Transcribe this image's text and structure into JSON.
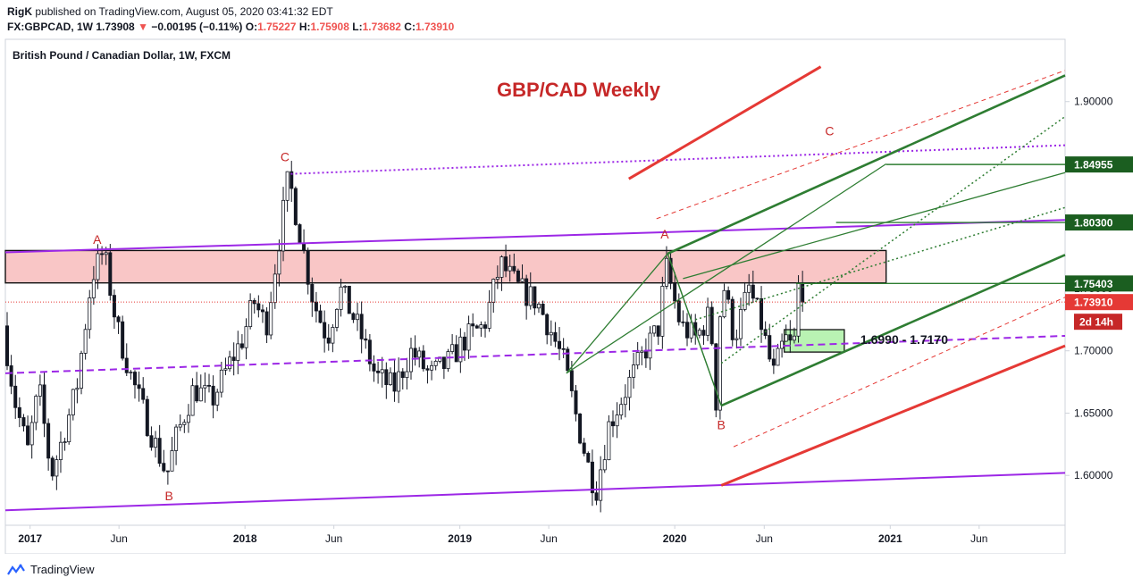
{
  "header": {
    "author": "RigK",
    "published_text": "published on TradingView.com, August 05, 2020 03:41:32 EDT",
    "symbol": "FX:GBPCAD, 1W",
    "last": "1.73908",
    "change_arrow": "▼",
    "change": "−0.00195 (−0.11%)",
    "o_label": "O:",
    "o_value": "1.75227",
    "h_label": "H:",
    "h_value": "1.75908",
    "l_label": "L:",
    "l_value": "1.73682",
    "c_label": "C:",
    "c_value": "1.73910"
  },
  "chart_title": "British Pound / Canadian Dollar, 1W, FXCM",
  "chart_annotation_title": "GBP/CAD Weekly",
  "footer": {
    "brand": "TradingView"
  },
  "colors": {
    "up": "#26a69a",
    "down": "#ef5350",
    "candle": "#131722",
    "resistance_zone": "#f7b3b3",
    "support_zone": "#a8f0a0",
    "purple": "#9c27e6",
    "green": "#2e7d32",
    "red": "#e53935"
  },
  "chart_data": {
    "type": "candlestick",
    "title": "British Pound / Canadian Dollar, 1W, FXCM",
    "annotation": "GBP/CAD Weekly",
    "x_range": [
      "2016-11-20",
      "2021-10-25"
    ],
    "ylim": [
      1.56,
      1.95
    ],
    "y_ticks": [
      1.6,
      1.65,
      1.7,
      1.75,
      1.8,
      1.85,
      1.9
    ],
    "y_tick_labels": [
      "1.60000",
      "1.65000",
      "1.70000",
      "1.75000",
      "1.80000",
      "1.85000",
      "1.90000"
    ],
    "x_ticks": [
      {
        "date": "2017-01-01",
        "label": "2017",
        "bold": true
      },
      {
        "date": "2017-06-01",
        "label": "Jun",
        "bold": false
      },
      {
        "date": "2018-01-01",
        "label": "2018",
        "bold": true
      },
      {
        "date": "2018-06-01",
        "label": "Jun",
        "bold": false
      },
      {
        "date": "2019-01-01",
        "label": "2019",
        "bold": true
      },
      {
        "date": "2019-06-01",
        "label": "Jun",
        "bold": false
      },
      {
        "date": "2020-01-01",
        "label": "2020",
        "bold": true
      },
      {
        "date": "2020-06-01",
        "label": "Jun",
        "bold": false
      },
      {
        "date": "2021-01-01",
        "label": "2021",
        "bold": true
      },
      {
        "date": "2021-06-01",
        "label": "Jun",
        "bold": false
      }
    ],
    "price_path": [
      [
        "2016-11-20",
        1.72
      ],
      [
        "2016-12-10",
        1.66
      ],
      [
        "2017-01-01",
        1.62
      ],
      [
        "2017-01-20",
        1.67
      ],
      [
        "2017-02-10",
        1.6
      ],
      [
        "2017-03-01",
        1.63
      ],
      [
        "2017-03-25",
        1.67
      ],
      [
        "2017-04-20",
        1.76
      ],
      [
        "2017-05-10",
        1.78
      ],
      [
        "2017-06-01",
        1.72
      ],
      [
        "2017-06-25",
        1.68
      ],
      [
        "2017-07-25",
        1.64
      ],
      [
        "2017-08-25",
        1.6
      ],
      [
        "2017-09-10",
        1.63
      ],
      [
        "2017-10-10",
        1.67
      ],
      [
        "2017-11-10",
        1.66
      ],
      [
        "2017-12-10",
        1.69
      ],
      [
        "2018-01-01",
        1.71
      ],
      [
        "2018-01-20",
        1.74
      ],
      [
        "2018-02-10",
        1.72
      ],
      [
        "2018-03-01",
        1.78
      ],
      [
        "2018-03-20",
        1.84
      ],
      [
        "2018-04-10",
        1.79
      ],
      [
        "2018-05-01",
        1.74
      ],
      [
        "2018-05-25",
        1.71
      ],
      [
        "2018-06-15",
        1.75
      ],
      [
        "2018-07-15",
        1.72
      ],
      [
        "2018-08-15",
        1.68
      ],
      [
        "2018-09-15",
        1.67
      ],
      [
        "2018-10-15",
        1.7
      ],
      [
        "2018-11-15",
        1.68
      ],
      [
        "2018-12-15",
        1.69
      ],
      [
        "2019-01-15",
        1.71
      ],
      [
        "2019-02-15",
        1.72
      ],
      [
        "2019-03-15",
        1.77
      ],
      [
        "2019-04-15",
        1.75
      ],
      [
        "2019-05-15",
        1.74
      ],
      [
        "2019-06-05",
        1.72
      ],
      [
        "2019-07-01",
        1.69
      ],
      [
        "2019-07-25",
        1.64
      ],
      [
        "2019-08-15",
        1.6
      ],
      [
        "2019-08-25",
        1.59
      ],
      [
        "2019-09-15",
        1.64
      ],
      [
        "2019-10-15",
        1.67
      ],
      [
        "2019-11-15",
        1.7
      ],
      [
        "2019-12-10",
        1.72
      ],
      [
        "2019-12-20",
        1.77
      ],
      [
        "2020-01-15",
        1.72
      ],
      [
        "2020-02-10",
        1.71
      ],
      [
        "2020-03-05",
        1.73
      ],
      [
        "2020-03-15",
        1.66
      ],
      [
        "2020-03-25",
        1.76
      ],
      [
        "2020-04-15",
        1.71
      ],
      [
        "2020-05-10",
        1.75
      ],
      [
        "2020-06-01",
        1.72
      ],
      [
        "2020-06-20",
        1.68
      ],
      [
        "2020-07-10",
        1.71
      ],
      [
        "2020-07-25",
        1.7
      ],
      [
        "2020-08-01",
        1.755
      ],
      [
        "2020-08-05",
        1.7391
      ]
    ],
    "horizontal_levels": [
      {
        "price": 1.84955,
        "label": "1.84955"
      },
      {
        "price": 1.803,
        "label": "1.80300"
      },
      {
        "price": 1.75403,
        "label": "1.75403"
      }
    ],
    "current_price": {
      "price": 1.7391,
      "label": "1.73910",
      "countdown": "2d 14h"
    },
    "resistance_zone": {
      "from": "2016-11-20",
      "to": "2020-12-25",
      "low": 1.7545,
      "high": 1.7805
    },
    "support_zone": {
      "from": "2020-07-05",
      "to": "2020-10-15",
      "low": 1.699,
      "high": 1.717,
      "label": "1.6990 - 1.7170"
    },
    "wave_labels": [
      {
        "text": "A",
        "date": "2017-04-25",
        "price": 1.786
      },
      {
        "text": "B",
        "date": "2017-08-25",
        "price": 1.58
      },
      {
        "text": "C",
        "date": "2018-03-10",
        "price": 1.852
      },
      {
        "text": "A",
        "date": "2019-12-15",
        "price": 1.79
      },
      {
        "text": "B",
        "date": "2020-03-20",
        "price": 1.637
      },
      {
        "text": "C",
        "date": "2020-09-20",
        "price": 1.873
      }
    ]
  }
}
